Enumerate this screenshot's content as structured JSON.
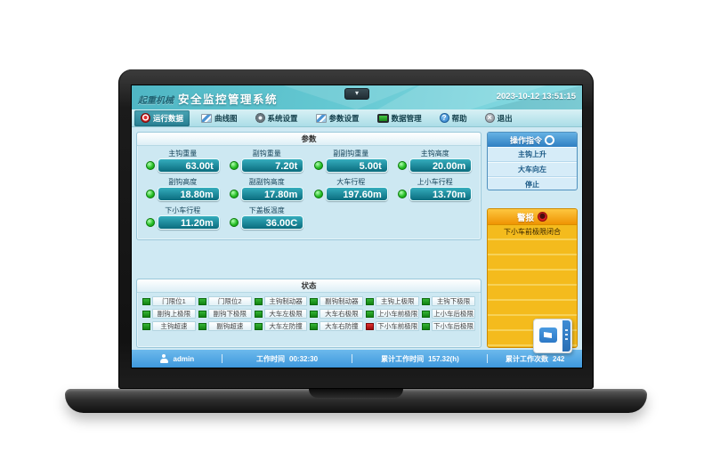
{
  "window": {
    "logo": "起重机械",
    "title": "安全监控管理系统",
    "datetime": "2023-10-12 13:51:15",
    "collapse_icon": "chevron-down-icon"
  },
  "menu": {
    "items": [
      {
        "label": "运行数据",
        "icon": "record-icon",
        "active": true
      },
      {
        "label": "曲线图",
        "icon": "curve-icon",
        "active": false
      },
      {
        "label": "系统设置",
        "icon": "gear-icon",
        "active": false
      },
      {
        "label": "参数设置",
        "icon": "params-icon",
        "active": false
      },
      {
        "label": "数据管理",
        "icon": "data-icon",
        "active": false
      },
      {
        "label": "帮助",
        "icon": "help-icon",
        "active": false
      },
      {
        "label": "退出",
        "icon": "exit-icon",
        "active": false
      }
    ]
  },
  "parameters": {
    "title": "参数",
    "items": [
      {
        "label": "主钩重量",
        "value": "63.00t"
      },
      {
        "label": "副钩重量",
        "value": "7.20t"
      },
      {
        "label": "副副钩重量",
        "value": "5.00t"
      },
      {
        "label": "主钩高度",
        "value": "20.00m"
      },
      {
        "label": "副钩高度",
        "value": "18.80m"
      },
      {
        "label": "副副钩高度",
        "value": "17.80m"
      },
      {
        "label": "大车行程",
        "value": "197.60m"
      },
      {
        "label": "上小车行程",
        "value": "13.70m"
      },
      {
        "label": "下小车行程",
        "value": "11.20m"
      },
      {
        "label": "下盖板温度",
        "value": "36.00C"
      }
    ]
  },
  "status": {
    "title": "状态",
    "items": [
      {
        "label": "门限位1",
        "state": "on"
      },
      {
        "label": "门限位2",
        "state": "on"
      },
      {
        "label": "主钩制动器",
        "state": "on"
      },
      {
        "label": "副钩制动器",
        "state": "on"
      },
      {
        "label": "主钩上极限",
        "state": "on"
      },
      {
        "label": "主钩下极限",
        "state": "on"
      },
      {
        "label": "副钩上极限",
        "state": "on"
      },
      {
        "label": "副钩下极限",
        "state": "on"
      },
      {
        "label": "大车左极限",
        "state": "on"
      },
      {
        "label": "大车右极限",
        "state": "on"
      },
      {
        "label": "上小车前极限",
        "state": "on"
      },
      {
        "label": "上小车后极限",
        "state": "on"
      },
      {
        "label": "主钩超速",
        "state": "on"
      },
      {
        "label": "副钩超速",
        "state": "on"
      },
      {
        "label": "大车左防撞",
        "state": "on"
      },
      {
        "label": "大车右防撞",
        "state": "on"
      },
      {
        "label": "下小车前极限",
        "state": "alarm"
      },
      {
        "label": "下小车后极限",
        "state": "on"
      }
    ]
  },
  "commands": {
    "title": "操作指令",
    "icon": "wheel-icon",
    "items": [
      "主钩上升",
      "大车向左",
      "停止"
    ]
  },
  "alarms": {
    "title": "警报",
    "icon": "alarm-icon",
    "messages": [
      "下小车前极限闭合",
      "",
      "",
      "",
      "",
      "",
      "",
      ""
    ]
  },
  "statusbar": {
    "user_icon": "user-icon",
    "user": "admin",
    "work_time_label": "工作时间",
    "work_time": "00:32:30",
    "total_time_label": "累计工作时间",
    "total_time": "157.32(h)",
    "total_count_label": "累计工作次数",
    "total_count": "242"
  },
  "ime": {
    "icon": "ime-flag-icon"
  },
  "colors": {
    "header_teal": "#59c1cd",
    "menu_active": "#2e93a5",
    "value_box_teal": "#0d7486",
    "led_green": "#2dc22d",
    "alarm_red": "#cc1717",
    "command_header_blue": "#3e8fd0",
    "alarm_header_orange": "#f5a113",
    "alarm_body_yellow": "#f4bb1d",
    "statusbar_blue": "#45a3e3",
    "screen_bg": "#cfe9f3"
  }
}
